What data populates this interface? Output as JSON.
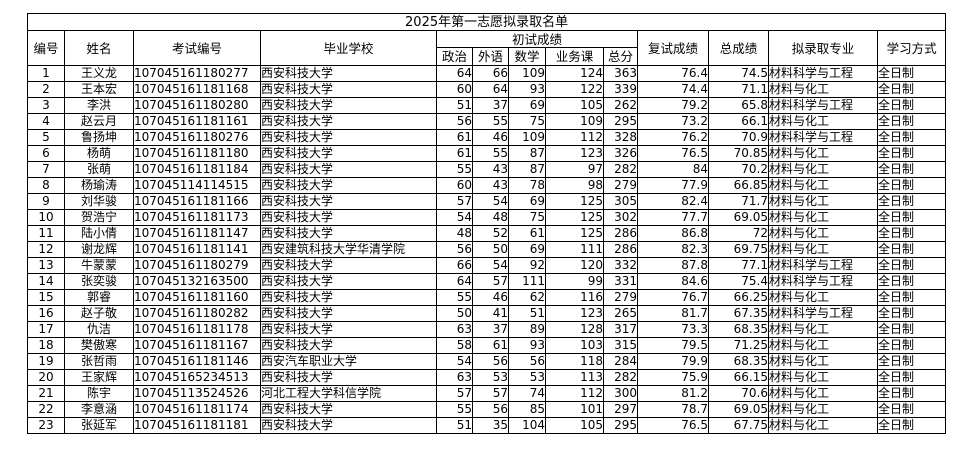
{
  "table": {
    "title": "2025年第一志愿拟录取名单",
    "header": {
      "row1": [
        "编号",
        "姓名",
        "考试编号",
        "毕业学校",
        "初试成绩",
        "复试成绩",
        "总成绩",
        "拟录取专业",
        "学习方式"
      ],
      "row2": [
        "政治",
        "外语",
        "数学",
        "业务课",
        "总分"
      ]
    },
    "rows": [
      [
        "1",
        "王义龙",
        "107045161180277",
        "西安科技大学",
        "64",
        "66",
        "109",
        "124",
        "363",
        "76.4",
        "74.5",
        "材料科学与工程",
        "全日制"
      ],
      [
        "2",
        "王本宏",
        "107045161181168",
        "西安科技大学",
        "60",
        "64",
        "93",
        "122",
        "339",
        "74.4",
        "71.1",
        "材料与化工",
        "全日制"
      ],
      [
        "3",
        "李洪",
        "107045161180280",
        "西安科技大学",
        "51",
        "37",
        "69",
        "105",
        "262",
        "79.2",
        "65.8",
        "材料科学与工程",
        "全日制"
      ],
      [
        "4",
        "赵云月",
        "107045161181161",
        "西安科技大学",
        "56",
        "55",
        "75",
        "109",
        "295",
        "73.2",
        "66.1",
        "材料与化工",
        "全日制"
      ],
      [
        "5",
        "鲁扬坤",
        "107045161180276",
        "西安科技大学",
        "61",
        "46",
        "109",
        "112",
        "328",
        "76.2",
        "70.9",
        "材料科学与工程",
        "全日制"
      ],
      [
        "6",
        "杨萌",
        "107045161181180",
        "西安科技大学",
        "61",
        "55",
        "87",
        "123",
        "326",
        "76.5",
        "70.85",
        "材料与化工",
        "全日制"
      ],
      [
        "7",
        "张萌",
        "107045161181184",
        "西安科技大学",
        "55",
        "43",
        "87",
        "97",
        "282",
        "84",
        "70.2",
        "材料与化工",
        "全日制"
      ],
      [
        "8",
        "杨瑜涛",
        "107045114114515",
        "西安科技大学",
        "60",
        "43",
        "78",
        "98",
        "279",
        "77.9",
        "66.85",
        "材料与化工",
        "全日制"
      ],
      [
        "9",
        "刘华骏",
        "107045161181166",
        "西安科技大学",
        "57",
        "54",
        "69",
        "125",
        "305",
        "82.4",
        "71.7",
        "材料与化工",
        "全日制"
      ],
      [
        "10",
        "贺浩宁",
        "107045161181173",
        "西安科技大学",
        "54",
        "48",
        "75",
        "125",
        "302",
        "77.7",
        "69.05",
        "材料与化工",
        "全日制"
      ],
      [
        "11",
        "陆小倩",
        "107045161181147",
        "西安科技大学",
        "48",
        "52",
        "61",
        "125",
        "286",
        "86.8",
        "72",
        "材料与化工",
        "全日制"
      ],
      [
        "12",
        "谢龙辉",
        "107045161181141",
        "西安建筑科技大学华清学院",
        "56",
        "50",
        "69",
        "111",
        "286",
        "82.3",
        "69.75",
        "材料与化工",
        "全日制"
      ],
      [
        "13",
        "牛蒙蒙",
        "107045161180279",
        "西安科技大学",
        "66",
        "54",
        "92",
        "120",
        "332",
        "87.8",
        "77.1",
        "材料科学与工程",
        "全日制"
      ],
      [
        "14",
        "张奕骏",
        "107045132163500",
        "西安科技大学",
        "64",
        "57",
        "111",
        "99",
        "331",
        "84.6",
        "75.4",
        "材料科学与工程",
        "全日制"
      ],
      [
        "15",
        "郭睿",
        "107045161181160",
        "西安科技大学",
        "55",
        "46",
        "62",
        "116",
        "279",
        "76.7",
        "66.25",
        "材料与化工",
        "全日制"
      ],
      [
        "16",
        "赵子敬",
        "107045161180282",
        "西安科技大学",
        "50",
        "41",
        "51",
        "123",
        "265",
        "81.7",
        "67.35",
        "材料科学与工程",
        "全日制"
      ],
      [
        "17",
        "仇洁",
        "107045161181178",
        "西安科技大学",
        "63",
        "37",
        "89",
        "128",
        "317",
        "73.3",
        "68.35",
        "材料与化工",
        "全日制"
      ],
      [
        "18",
        "樊傲寒",
        "107045161181167",
        "西安科技大学",
        "58",
        "61",
        "93",
        "103",
        "315",
        "79.5",
        "71.25",
        "材料与化工",
        "全日制"
      ],
      [
        "19",
        "张哲雨",
        "107045161181146",
        "西安汽车职业大学",
        "54",
        "56",
        "56",
        "118",
        "284",
        "79.9",
        "68.35",
        "材料与化工",
        "全日制"
      ],
      [
        "20",
        "王家辉",
        "107045165234513",
        "西安科技大学",
        "63",
        "53",
        "53",
        "113",
        "282",
        "75.9",
        "66.15",
        "材料与化工",
        "全日制"
      ],
      [
        "21",
        "陈宇",
        "107045113524526",
        "河北工程大学科信学院",
        "57",
        "57",
        "74",
        "112",
        "300",
        "81.2",
        "70.6",
        "材料与化工",
        "全日制"
      ],
      [
        "22",
        "李意涵",
        "107045161181174",
        "西安科技大学",
        "55",
        "56",
        "85",
        "101",
        "297",
        "78.7",
        "69.05",
        "材料与化工",
        "全日制"
      ],
      [
        "23",
        "张延军",
        "107045161181181",
        "西安科技大学",
        "51",
        "35",
        "104",
        "105",
        "295",
        "76.5",
        "67.75",
        "材料与化工",
        "全日制"
      ]
    ]
  }
}
